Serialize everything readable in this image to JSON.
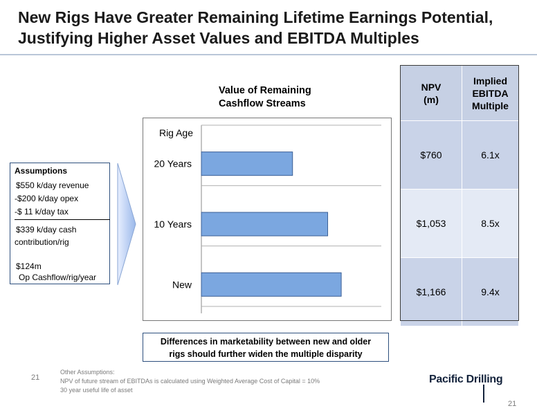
{
  "title_line1": "New Rigs Have Greater Remaining Lifetime Earnings Potential,",
  "title_line2": "Justifying Higher Asset Values and EBITDA Multiples",
  "chart_heading_line1": "Value of Remaining",
  "chart_heading_line2": "Cashflow Streams",
  "assumptions": {
    "heading": "Assumptions",
    "revenue": "$550 k/day revenue",
    "opex": "-$200 k/day opex",
    "tax": "-$  11  k/day tax",
    "cash_line1": "$339 k/day cash",
    "cash_line2": "contribution/rig",
    "cashflow_line1": "$124m",
    "cashflow_line2": "Op Cashflow/rig/year"
  },
  "table": {
    "header_npv": [
      "NPV",
      "(m)"
    ],
    "header_multiple": [
      "Implied",
      "EBITDA",
      "Multiple"
    ],
    "rows": [
      {
        "npv": "$760",
        "multiple": "6.1x"
      },
      {
        "npv": "$1,053",
        "multiple": "8.5x"
      },
      {
        "npv": "$1,166",
        "multiple": "9.4x"
      }
    ]
  },
  "callout_line1": "Differences in marketability between new and older",
  "callout_line2": "rigs should further widen the multiple disparity",
  "footnote": {
    "line1": "Other Assumptions:",
    "line2": "NPV of future stream of EBITDAs is calculated using Weighted Average Cost of Capital = 10%",
    "line3": "30 year useful life of asset"
  },
  "page_number_left": "21",
  "page_number_right": "21",
  "logo_text": "Pacific Drilling",
  "colors": {
    "bar_fill": "#7ba7e0",
    "bar_stroke": "#3b5f95",
    "table_dark": "#c9d3e8",
    "table_light": "#e4eaf5",
    "border_blue": "#2d4f7d"
  },
  "chart_data": {
    "type": "bar",
    "orientation": "horizontal",
    "categories": [
      "20 Years",
      "10 Years",
      "New"
    ],
    "values": [
      760,
      1053,
      1166
    ],
    "xlim": [
      0,
      1500
    ],
    "axis_title": "Rig Age",
    "grid": true,
    "legend": "none"
  }
}
